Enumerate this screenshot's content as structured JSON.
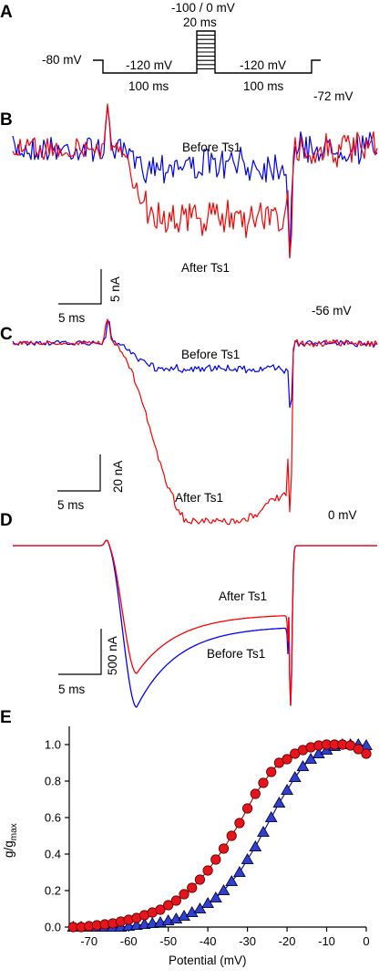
{
  "panels": {
    "A": {
      "letter": "A",
      "holding_label": "-80 mV",
      "pre_label": "-120 mV",
      "pre_duration": "100 ms",
      "step_label": "-100 / 0 mV",
      "step_duration": "20 ms",
      "post_label": "-120 mV",
      "post_duration": "100 ms"
    },
    "B": {
      "letter": "B",
      "voltage": "-72 mV",
      "before_label": "Before Ts1",
      "after_label": "After Ts1",
      "scale_current": "5 nA",
      "scale_time": "5 ms"
    },
    "C": {
      "letter": "C",
      "voltage": "-56 mV",
      "before_label": "Before Ts1",
      "after_label": "After Ts1",
      "scale_current": "20 nA",
      "scale_time": "5 ms"
    },
    "D": {
      "letter": "D",
      "voltage": "0 mV",
      "before_label": "Before Ts1",
      "after_label": "After Ts1",
      "scale_current": "500 nA",
      "scale_time": "5 ms"
    },
    "E": {
      "letter": "E",
      "ylabel_main": "g/g",
      "ylabel_sub": "max",
      "xlabel": "Potential (mV)"
    }
  },
  "colors": {
    "before": "#0000ff",
    "after": "#ff0000",
    "marker_after_fill": "#e8141c",
    "marker_before_fill": "#2f3fd0",
    "axis": "#000000"
  },
  "chart_data": {
    "type": "scatter",
    "xlabel": "Potential (mV)",
    "ylabel": "g/gmax",
    "xlim": [
      -75,
      0
    ],
    "ylim": [
      0,
      1.1
    ],
    "xticks": [
      -70,
      -60,
      -50,
      -40,
      -30,
      -20,
      -10,
      0
    ],
    "yticks": [
      0.0,
      0.2,
      0.4,
      0.6,
      0.8,
      1.0
    ],
    "xtick_labels": [
      "-70",
      "-60",
      "-50",
      "-40",
      "-30",
      "-20",
      "-10",
      "0"
    ],
    "ytick_labels": [
      "0.0",
      "0.2",
      "0.4",
      "0.6",
      "0.8",
      "1.0"
    ],
    "x": [
      -74,
      -72,
      -70,
      -68,
      -66,
      -64,
      -62,
      -60,
      -58,
      -56,
      -54,
      -52,
      -50,
      -48,
      -46,
      -44,
      -42,
      -40,
      -38,
      -36,
      -34,
      -32,
      -30,
      -28,
      -26,
      -24,
      -22,
      -20,
      -18,
      -16,
      -14,
      -12,
      -10,
      -8,
      -6,
      -4,
      -2,
      0
    ],
    "series": [
      {
        "marker": "circle",
        "color": "#e8141c",
        "values": [
          0.0,
          0.0,
          0.005,
          0.01,
          0.015,
          0.02,
          0.03,
          0.04,
          0.05,
          0.065,
          0.08,
          0.095,
          0.12,
          0.145,
          0.18,
          0.215,
          0.26,
          0.31,
          0.37,
          0.43,
          0.5,
          0.57,
          0.65,
          0.73,
          0.79,
          0.85,
          0.9,
          0.92,
          0.95,
          0.97,
          0.985,
          0.995,
          1.0,
          1.0,
          1.0,
          0.995,
          0.975,
          0.95
        ]
      },
      {
        "marker": "triangle",
        "color": "#2f3fd0",
        "values": [
          0.0,
          0.0,
          0.0,
          0.0,
          0.0,
          0.0,
          0.0,
          0.005,
          0.01,
          0.015,
          0.02,
          0.025,
          0.035,
          0.045,
          0.06,
          0.08,
          0.1,
          0.13,
          0.16,
          0.2,
          0.25,
          0.3,
          0.37,
          0.44,
          0.52,
          0.6,
          0.68,
          0.75,
          0.82,
          0.88,
          0.92,
          0.95,
          0.97,
          0.99,
          1.0,
          1.0,
          1.0,
          0.995
        ]
      }
    ]
  }
}
